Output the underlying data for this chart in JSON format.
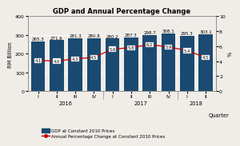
{
  "title": "GDP and Annual Percentage Change",
  "ylabel_left": "RM Billion",
  "ylabel_right": "%",
  "xlabel": "Quarter",
  "categories": [
    "I",
    "II",
    "III",
    "IV",
    "I",
    "II",
    "III",
    "IV",
    "I",
    "II"
  ],
  "year_groups": [
    {
      "label": "2016",
      "positions": [
        0,
        1,
        2,
        3
      ]
    },
    {
      "label": "2017",
      "positions": [
        4,
        5,
        6,
        7
      ]
    },
    {
      "label": "2018",
      "positions": [
        8,
        9
      ]
    }
  ],
  "gdp_values": [
    265.3,
    271.6,
    281.3,
    280.8,
    280.2,
    287.3,
    298.7,
    308.1,
    295.3,
    303.1
  ],
  "pct_values": [
    4.1,
    4.0,
    4.3,
    4.5,
    5.6,
    5.8,
    6.2,
    5.9,
    5.4,
    4.5
  ],
  "bar_color": "#1a4a72",
  "line_color": "#c00000",
  "bar_width": 0.75,
  "ylim_left": [
    0,
    400
  ],
  "ylim_right": [
    0,
    10
  ],
  "yticks_left": [
    0,
    100,
    200,
    300,
    400
  ],
  "yticks_right": [
    0,
    2,
    4,
    6,
    8,
    10
  ],
  "legend_bar": "GDP at Constant 2010 Prices",
  "legend_line": "Annual Percentage Change at Constant 2010 Prices",
  "bg_color": "#f0ede8",
  "title_fontsize": 6.0,
  "axis_label_fontsize": 4.8,
  "value_fontsize": 4.0,
  "tick_fontsize": 4.5,
  "year_fontsize": 4.8,
  "legend_fontsize": 4.0
}
